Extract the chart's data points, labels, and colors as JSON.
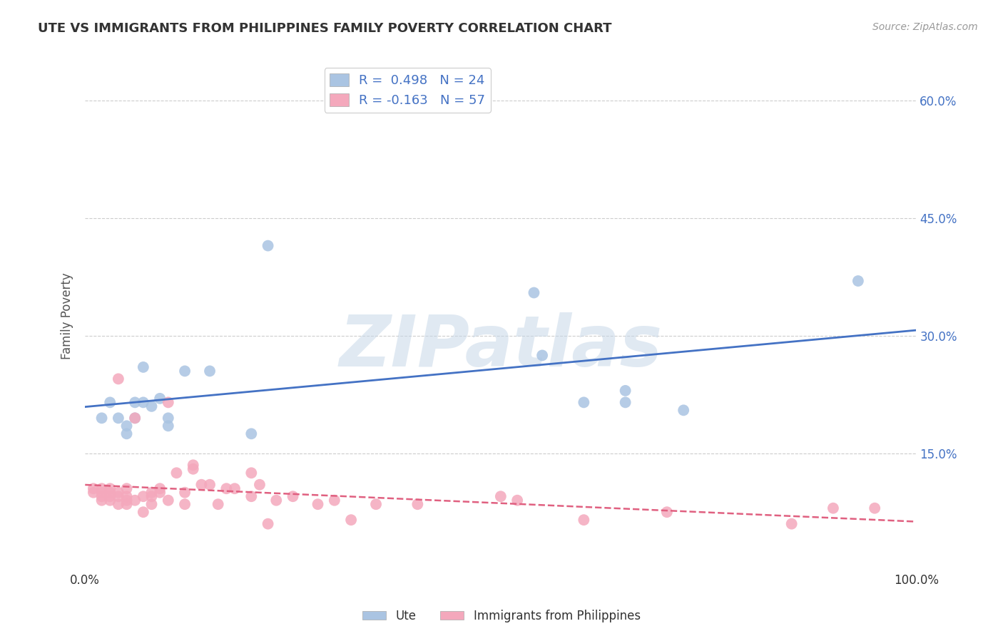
{
  "title": "UTE VS IMMIGRANTS FROM PHILIPPINES FAMILY POVERTY CORRELATION CHART",
  "source": "Source: ZipAtlas.com",
  "ylabel": "Family Poverty",
  "watermark": "ZIPatlas",
  "xlim": [
    0.0,
    1.0
  ],
  "ylim": [
    0.0,
    0.65
  ],
  "ytick_values": [
    0.15,
    0.3,
    0.45,
    0.6
  ],
  "right_ytick_labels": [
    "15.0%",
    "30.0%",
    "45.0%",
    "60.0%"
  ],
  "legend1_label": "R =  0.498   N = 24",
  "legend2_label": "R = -0.163   N = 57",
  "ute_color": "#aac4e2",
  "phil_color": "#f4a8bc",
  "ute_line_color": "#4472c4",
  "phil_line_color": "#e06080",
  "background_color": "#ffffff",
  "grid_color": "#cccccc",
  "ute_x": [
    0.54,
    0.02,
    0.03,
    0.04,
    0.05,
    0.05,
    0.06,
    0.06,
    0.07,
    0.07,
    0.08,
    0.09,
    0.1,
    0.1,
    0.12,
    0.15,
    0.2,
    0.22,
    0.55,
    0.6,
    0.65,
    0.72,
    0.65,
    0.93
  ],
  "ute_y": [
    0.355,
    0.195,
    0.215,
    0.195,
    0.175,
    0.185,
    0.195,
    0.215,
    0.215,
    0.26,
    0.21,
    0.22,
    0.195,
    0.185,
    0.255,
    0.255,
    0.175,
    0.415,
    0.275,
    0.215,
    0.215,
    0.205,
    0.23,
    0.37
  ],
  "phil_x": [
    0.01,
    0.01,
    0.02,
    0.02,
    0.02,
    0.02,
    0.03,
    0.03,
    0.03,
    0.03,
    0.04,
    0.04,
    0.04,
    0.04,
    0.05,
    0.05,
    0.05,
    0.05,
    0.06,
    0.06,
    0.07,
    0.07,
    0.08,
    0.08,
    0.08,
    0.09,
    0.09,
    0.1,
    0.1,
    0.11,
    0.12,
    0.12,
    0.13,
    0.13,
    0.14,
    0.15,
    0.16,
    0.17,
    0.18,
    0.2,
    0.2,
    0.21,
    0.22,
    0.23,
    0.25,
    0.28,
    0.3,
    0.32,
    0.35,
    0.4,
    0.5,
    0.52,
    0.6,
    0.7,
    0.85,
    0.9,
    0.95
  ],
  "phil_y": [
    0.1,
    0.105,
    0.09,
    0.095,
    0.1,
    0.105,
    0.09,
    0.095,
    0.1,
    0.105,
    0.085,
    0.095,
    0.1,
    0.245,
    0.085,
    0.09,
    0.095,
    0.105,
    0.09,
    0.195,
    0.075,
    0.095,
    0.085,
    0.095,
    0.1,
    0.1,
    0.105,
    0.09,
    0.215,
    0.125,
    0.085,
    0.1,
    0.13,
    0.135,
    0.11,
    0.11,
    0.085,
    0.105,
    0.105,
    0.125,
    0.095,
    0.11,
    0.06,
    0.09,
    0.095,
    0.085,
    0.09,
    0.065,
    0.085,
    0.085,
    0.095,
    0.09,
    0.065,
    0.075,
    0.06,
    0.08,
    0.08
  ]
}
